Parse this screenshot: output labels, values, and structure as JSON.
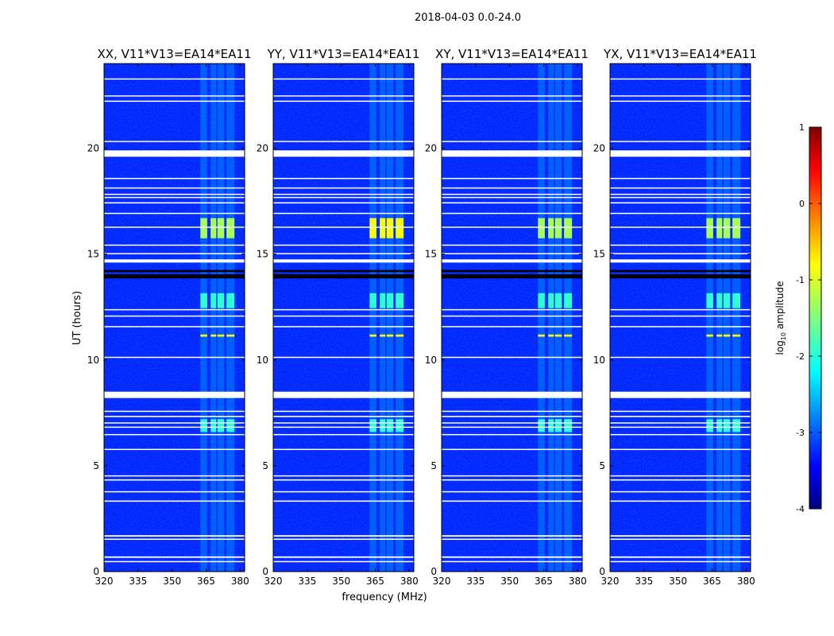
{
  "figure_title": "2018-04-03 0.0-24.0",
  "chart_data": {
    "type": "heatmap",
    "suptitle": "2018-04-03 0.0-24.0",
    "xlabel": "frequency (MHz)",
    "ylabel": "UT (hours)",
    "xlim": [
      320,
      382
    ],
    "ylim": [
      0,
      24
    ],
    "xticks": [
      320,
      335,
      350,
      365,
      380
    ],
    "yticks": [
      0,
      5,
      10,
      15,
      20
    ],
    "panels": [
      {
        "title": "XX, V11*V13=EA14*EA11"
      },
      {
        "title": "YY, V11*V13=EA14*EA11"
      },
      {
        "title": "XY, V11*V13=EA14*EA11"
      },
      {
        "title": "YX, V11*V13=EA14*EA11"
      }
    ],
    "colorbar": {
      "label": "log",
      "label_sub": "10",
      "label_rest": " amplitude",
      "ticks": [
        1,
        0,
        -1,
        -2,
        -3,
        -4
      ],
      "range": [
        -4,
        1
      ],
      "colormap": "jet"
    },
    "blank_bands_hours": [
      [
        0.45,
        0.5
      ],
      [
        0.65,
        0.72
      ],
      [
        1.5,
        1.56
      ],
      [
        1.65,
        1.72
      ],
      [
        3.3,
        3.36
      ],
      [
        3.75,
        3.8
      ],
      [
        4.3,
        4.36
      ],
      [
        4.5,
        4.55
      ],
      [
        5.75,
        5.8
      ],
      [
        6.45,
        6.5
      ],
      [
        6.8,
        6.85
      ],
      [
        7.0,
        7.05
      ],
      [
        7.3,
        7.36
      ],
      [
        7.55,
        7.6
      ],
      [
        8.2,
        8.5
      ],
      [
        10.1,
        10.15
      ],
      [
        11.55,
        11.6
      ],
      [
        12.05,
        12.1
      ],
      [
        12.35,
        12.4
      ],
      [
        14.6,
        14.75
      ],
      [
        15.0,
        15.05
      ],
      [
        15.4,
        15.45
      ],
      [
        16.25,
        16.3
      ],
      [
        16.9,
        16.95
      ],
      [
        17.4,
        17.45
      ],
      [
        17.65,
        17.7
      ],
      [
        17.8,
        17.85
      ],
      [
        18.1,
        18.15
      ],
      [
        18.55,
        18.6
      ],
      [
        19.6,
        19.9
      ],
      [
        20.3,
        20.35
      ],
      [
        22.2,
        22.25
      ],
      [
        22.45,
        22.5
      ],
      [
        23.25,
        23.3
      ]
    ],
    "black_bands_hours": [
      [
        13.85,
        14.05
      ],
      [
        14.15,
        14.25
      ]
    ],
    "rfi_blocks_mhz": [
      [
        362.5,
        365.5
      ],
      [
        367,
        369.5
      ],
      [
        370,
        373
      ],
      [
        374,
        377.5
      ]
    ],
    "bright_events_hours": [
      {
        "t0": 15.75,
        "t1": 16.7,
        "log10_amplitude": -1.3
      },
      {
        "t0": 12.45,
        "t1": 13.15,
        "log10_amplitude": -1.9
      },
      {
        "t0": 6.6,
        "t1": 7.2,
        "log10_amplitude": -1.9
      },
      {
        "t0": 11.1,
        "t1": 11.2,
        "log10_amplitude": -0.9
      }
    ],
    "background_log10_amplitude": -3.2
  }
}
